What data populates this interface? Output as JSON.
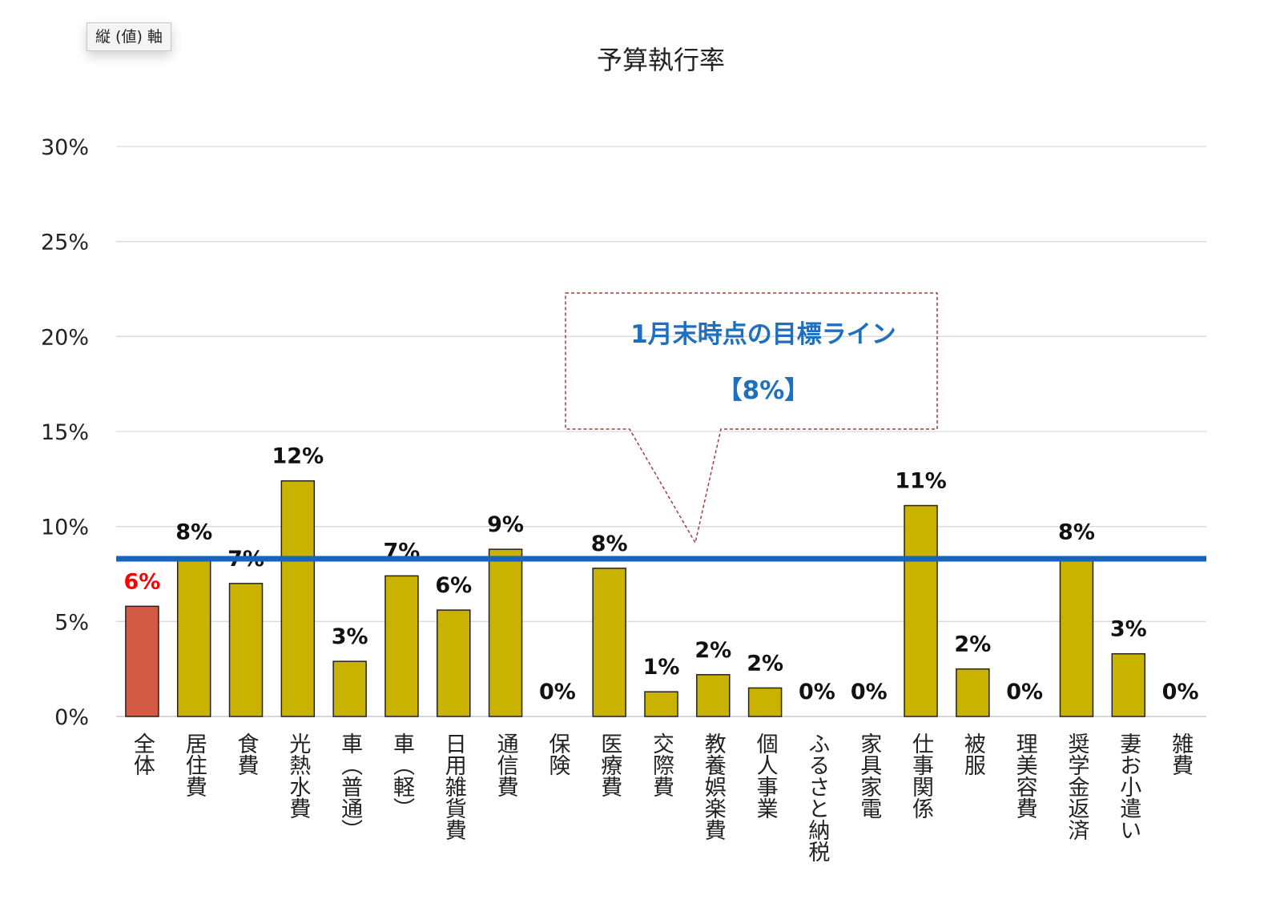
{
  "tooltip": {
    "label": "縦 (値) 軸"
  },
  "chart_data": {
    "type": "bar",
    "title": "予算執行率",
    "xlabel": "",
    "ylabel": "",
    "ylim": [
      0,
      0.3
    ],
    "y_ticks": [
      "0%",
      "5%",
      "10%",
      "15%",
      "20%",
      "25%",
      "30%"
    ],
    "grid": true,
    "categories": [
      "全体",
      "居住費",
      "食費",
      "光熱水費",
      "車（普通）",
      "車（軽）",
      "日用雑貨費",
      "通信費",
      "保険",
      "医療費",
      "交際費",
      "教養娯楽費",
      "個人事業",
      "ふるさと納税",
      "家具家電",
      "仕事関係",
      "被服",
      "理美容費",
      "奨学金返済",
      "妻お小遣い",
      "雑費"
    ],
    "values": [
      0.058,
      0.084,
      0.07,
      0.124,
      0.029,
      0.074,
      0.056,
      0.088,
      0.0,
      0.078,
      0.013,
      0.022,
      0.015,
      0.0,
      0.0,
      0.111,
      0.025,
      0.0,
      0.084,
      0.033,
      0.0
    ],
    "data_labels": [
      "6%",
      "8%",
      "7%",
      "12%",
      "3%",
      "7%",
      "6%",
      "9%",
      "0%",
      "8%",
      "1%",
      "2%",
      "2%",
      "0%",
      "0%",
      "11%",
      "2%",
      "0%",
      "8%",
      "3%",
      "0%"
    ],
    "colors": {
      "highlight": "#d35a45",
      "bar": "#c9b300",
      "target": "#1565c0",
      "highlight_label": "#ff0000",
      "callout_border": "#a0413c"
    },
    "target_line": {
      "value": 0.083
    },
    "annotation": {
      "line1": "1月末時点の目標ライン",
      "line2": "【8%】"
    }
  }
}
